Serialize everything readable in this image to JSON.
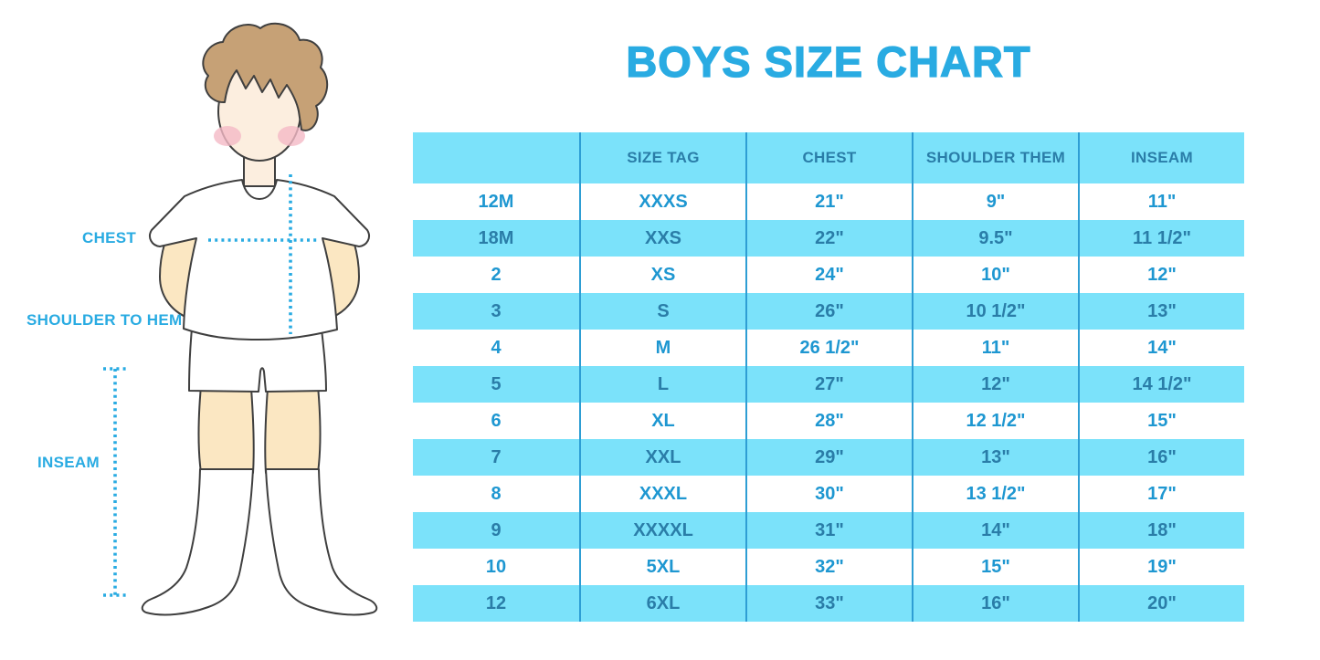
{
  "title": "BOYS SIZE CHART",
  "figure": {
    "labels": {
      "chest": "CHEST",
      "shoulder_to_hem": "SHOULDER TO HEM",
      "inseam": "INSEAM"
    }
  },
  "colors": {
    "accent_blue": "#29ABE2",
    "table_row_blue": "#7BE2FA",
    "table_divider_blue": "#2E9ED4",
    "text_on_white_rows": "#1E97D1",
    "text_on_blue_rows": "#2A7DA8"
  },
  "chart_data": {
    "type": "table",
    "title": "BOYS SIZE CHART",
    "columns": [
      "",
      "SIZE TAG",
      "CHEST",
      "SHOULDER THEM",
      "INSEAM"
    ],
    "rows": [
      [
        "12M",
        "XXXS",
        "21\"",
        "9\"",
        "11\""
      ],
      [
        "18M",
        "XXS",
        "22\"",
        "9.5\"",
        "11 1/2\""
      ],
      [
        "2",
        "XS",
        "24\"",
        "10\"",
        "12\""
      ],
      [
        "3",
        "S",
        "26\"",
        "10 1/2\"",
        "13\""
      ],
      [
        "4",
        "M",
        "26 1/2\"",
        "11\"",
        "14\""
      ],
      [
        "5",
        "L",
        "27\"",
        "12\"",
        "14 1/2\""
      ],
      [
        "6",
        "XL",
        "28\"",
        "12 1/2\"",
        "15\""
      ],
      [
        "7",
        "XXL",
        "29\"",
        "13\"",
        "16\""
      ],
      [
        "8",
        "XXXL",
        "30\"",
        "13 1/2\"",
        "17\""
      ],
      [
        "9",
        "XXXXL",
        "31\"",
        "14\"",
        "18\""
      ],
      [
        "10",
        "5XL",
        "32\"",
        "15\"",
        "19\""
      ],
      [
        "12",
        "6XL",
        "33\"",
        "16\"",
        "20\""
      ]
    ]
  }
}
